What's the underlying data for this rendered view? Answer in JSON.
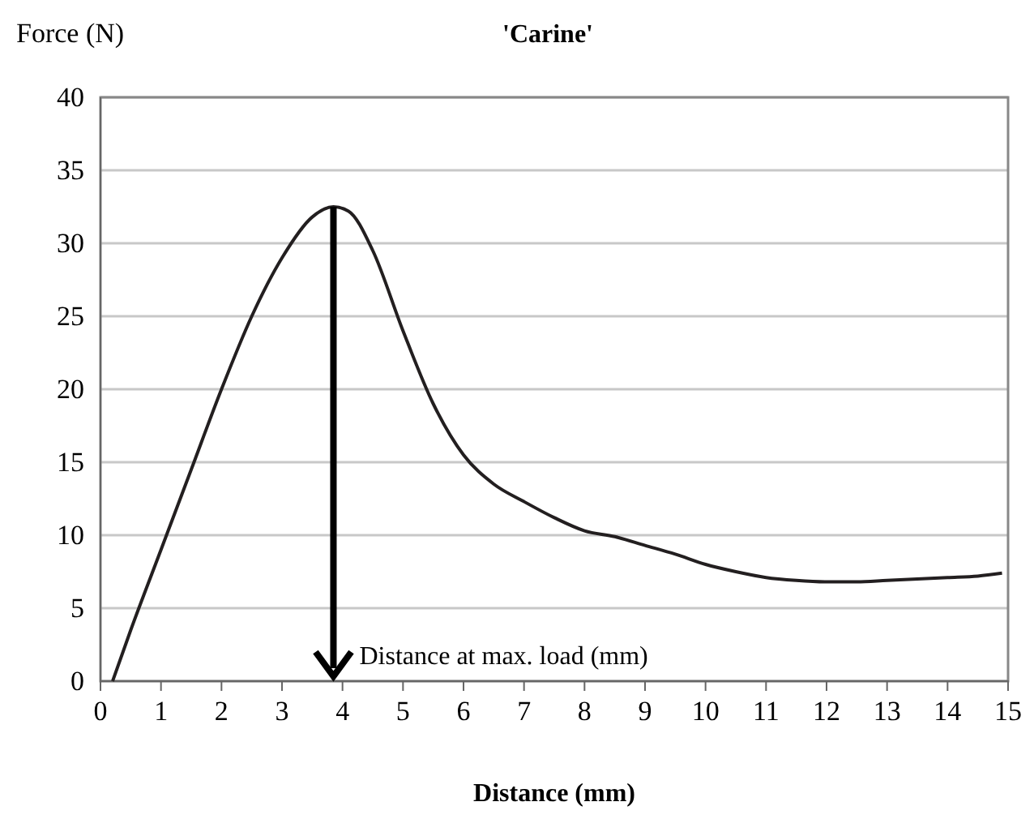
{
  "chart_data": {
    "type": "line",
    "title": "'Carine'",
    "xlabel": "Distance (mm)",
    "ylabel": "Force (N)",
    "x": [
      0.2,
      0.5,
      1,
      1.5,
      2,
      2.5,
      3,
      3.5,
      3.85,
      4.1,
      4.5,
      5,
      5.5,
      6,
      6.5,
      7,
      7.5,
      8,
      8.5,
      9,
      9.5,
      10,
      10.5,
      11,
      11.5,
      12,
      12.5,
      13,
      13.5,
      14,
      14.5,
      14.9
    ],
    "series": [
      {
        "color": "#231f20",
        "values": [
          0,
          3.5,
          9,
          14.5,
          20,
          25,
          29,
          31.8,
          32.5,
          32.2,
          29.5,
          24,
          19,
          15.5,
          13.5,
          12.3,
          11.2,
          10.3,
          9.9,
          9.3,
          8.7,
          8,
          7.5,
          7.1,
          6.9,
          6.8,
          6.8,
          6.9,
          7,
          7.1,
          7.2,
          7.4
        ]
      }
    ],
    "xlim": [
      0,
      15
    ],
    "xticks": [
      0,
      1,
      2,
      3,
      4,
      5,
      6,
      7,
      8,
      9,
      10,
      11,
      12,
      13,
      14,
      15
    ],
    "ylim": [
      0,
      40
    ],
    "yticks": [
      0,
      5,
      10,
      15,
      20,
      25,
      30,
      35,
      40
    ],
    "grid": "y",
    "marker": "none",
    "line_style": "solid",
    "annotations": [
      {
        "text": "Distance at max. load (mm)",
        "x": 3.85,
        "y": 1
      }
    ]
  }
}
